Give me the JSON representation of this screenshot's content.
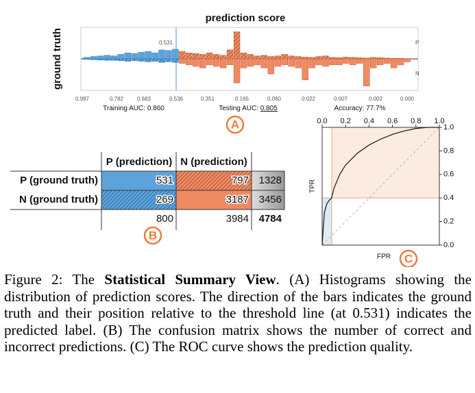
{
  "panel_a": {
    "title": "prediction score",
    "y_label": "ground truth",
    "threshold_label": "0.531",
    "top_label": "P",
    "bottom_label": "N",
    "x_ticks": [
      "0.987",
      "0.782",
      "0.683",
      "0.536",
      "0.351",
      "0.165",
      "0.060",
      "0.022",
      "0.007",
      "0.002",
      "0.000"
    ],
    "training_auc_label": "Training AUC:",
    "training_auc": "0.860",
    "testing_auc_label": "Testing AUC:",
    "testing_auc": "0.805",
    "accuracy_label": "Accuracy:",
    "accuracy": "77.7%",
    "marker": "A",
    "histogram": {
      "positive": [
        0.05,
        0.08,
        0.1,
        0.12,
        0.1,
        0.15,
        0.2,
        0.18,
        0.22,
        0.25,
        0.2,
        0.3,
        0.28,
        0.32,
        0.25,
        0.2,
        0.18,
        0.15,
        0.2,
        0.15,
        0.12,
        0.3,
        0.9,
        0.2,
        0.15,
        0.1,
        0.12,
        0.08,
        0.1,
        0.15,
        0.1,
        0.08,
        0.06,
        0.05,
        0.08,
        0.1,
        0.05,
        0.04,
        0.06,
        0.05,
        0.04,
        0.03,
        0.05,
        0.04,
        0.03,
        0.02,
        0.02,
        0.01
      ],
      "negative": [
        0.02,
        0.03,
        0.04,
        0.05,
        0.05,
        0.06,
        0.08,
        0.06,
        0.08,
        0.1,
        0.08,
        0.12,
        0.1,
        0.12,
        0.15,
        0.2,
        0.25,
        0.3,
        0.2,
        0.25,
        0.3,
        0.2,
        0.8,
        0.3,
        0.25,
        0.2,
        0.3,
        0.5,
        0.25,
        0.2,
        0.25,
        0.3,
        0.7,
        0.3,
        0.2,
        0.25,
        0.2,
        0.2,
        0.15,
        0.2,
        0.15,
        0.9,
        0.3,
        0.2,
        0.15,
        0.3,
        0.2,
        0.1
      ]
    }
  },
  "panel_b": {
    "col_headers": [
      "P (prediction)",
      "N (prediction)"
    ],
    "rows": [
      {
        "label": "P (ground truth)",
        "cells": [
          "531",
          "797",
          "1328"
        ]
      },
      {
        "label": "N (ground truth)",
        "cells": [
          "269",
          "3187",
          "3456"
        ]
      }
    ],
    "col_totals": [
      "800",
      "3984",
      "4784"
    ],
    "marker": "B"
  },
  "panel_c": {
    "x_label": "FPR",
    "y_label": "TPR",
    "x_ticks": [
      "0.0",
      "0.2",
      "0.4",
      "0.6",
      "0.8",
      "1.0"
    ],
    "y_ticks": [
      "0.0",
      "0.2",
      "0.4",
      "0.6",
      "0.8",
      "1.0"
    ],
    "curve": {
      "fpr": [
        0,
        0.01,
        0.02,
        0.04,
        0.06,
        0.08,
        0.1,
        0.15,
        0.2,
        0.3,
        0.4,
        0.5,
        0.6,
        0.7,
        0.8,
        0.9,
        1
      ],
      "tpr": [
        0,
        0.15,
        0.28,
        0.35,
        0.38,
        0.4,
        0.48,
        0.6,
        0.68,
        0.78,
        0.85,
        0.9,
        0.94,
        0.97,
        0.99,
        1,
        1
      ]
    },
    "marker": "C"
  },
  "caption": {
    "prefix": "Figure 2: The ",
    "bold": "Statistical Summary View",
    "rest": ". (A) Histograms showing the distribution of prediction scores. The direction of the bars indicates the ground truth and their position relative to the threshold line (at 0.531) indicates the predicted label. (B) The confusion matrix shows the number of correct and incorrect predictions. (C) The ROC curve shows the prediction quality."
  }
}
